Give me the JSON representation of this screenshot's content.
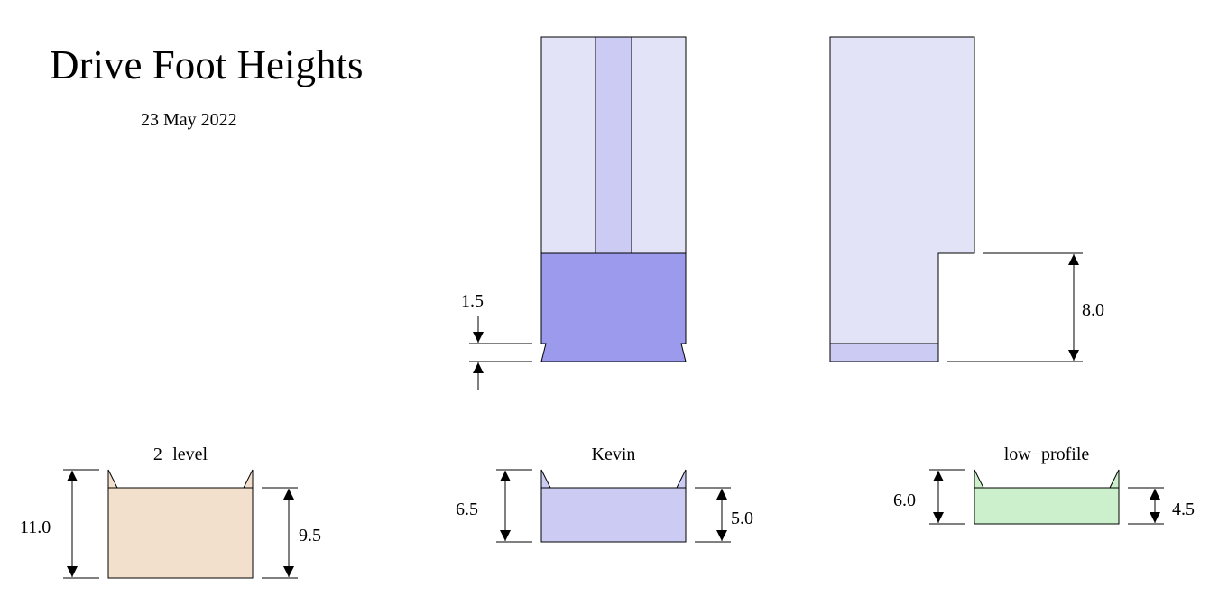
{
  "title": "Drive Foot Heights",
  "date": "23 May 2022",
  "colors": {
    "stroke": "#000000",
    "lavender_light": "#e2e3f7",
    "lavender_mid": "#cccbf3",
    "purple_foot": "#9b9aec",
    "tan_foot": "#f2e0cc",
    "green_foot": "#ccf0cc"
  },
  "top_views": {
    "left": {
      "dimension_label": "1.5"
    },
    "right": {
      "dimension_label": "8.0"
    }
  },
  "feet": [
    {
      "name": "2−level",
      "total_height_label": "11.0",
      "body_height_label": "9.5"
    },
    {
      "name": "Kevin",
      "total_height_label": "6.5",
      "body_height_label": "5.0"
    },
    {
      "name": "low−profile",
      "total_height_label": "6.0",
      "body_height_label": "4.5"
    }
  ]
}
